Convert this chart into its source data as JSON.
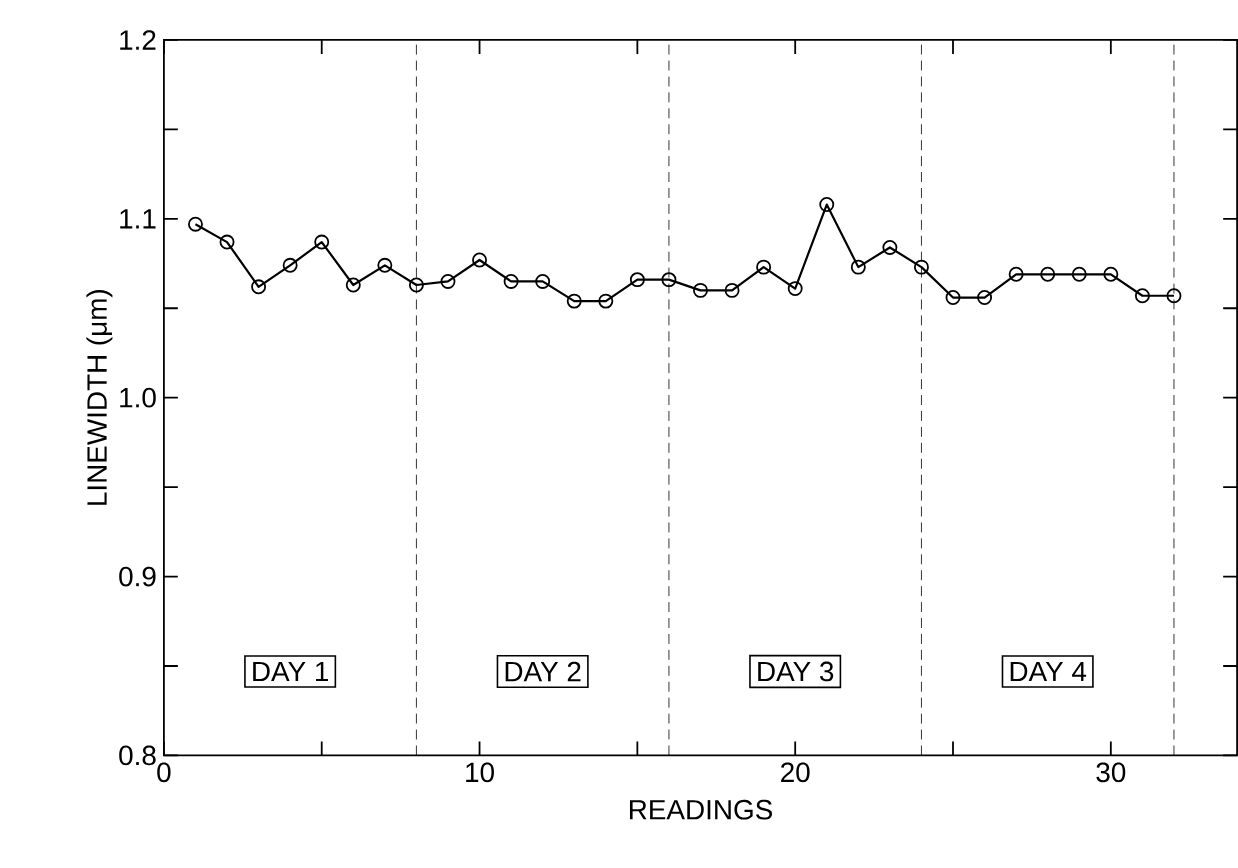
{
  "chart_data": {
    "type": "line",
    "xlabel": "READINGS",
    "ylabel": "LINEWIDTH (μm)",
    "x": [
      1,
      2,
      3,
      4,
      5,
      6,
      7,
      8,
      9,
      10,
      11,
      12,
      13,
      14,
      15,
      16,
      17,
      18,
      19,
      20,
      21,
      22,
      23,
      24,
      25,
      26,
      27,
      28,
      29,
      30,
      31,
      32
    ],
    "series": [
      {
        "color": "#000000",
        "values": [
          1.097,
          1.087,
          1.062,
          1.074,
          1.087,
          1.063,
          1.074,
          1.063,
          1.065,
          1.077,
          1.065,
          1.065,
          1.054,
          1.054,
          1.066,
          1.066,
          1.06,
          1.06,
          1.073,
          1.061,
          1.108,
          1.073,
          1.084,
          1.073,
          1.056,
          1.056,
          1.069,
          1.069,
          1.069,
          1.069,
          1.057,
          1.057
        ]
      }
    ],
    "marker": "circle",
    "line_style": "solid",
    "xlim": [
      0,
      34
    ],
    "xticks": [
      0,
      {
        "value": 5,
        "label": null
      },
      10,
      {
        "value": 15,
        "label": null
      },
      20,
      {
        "value": 25,
        "label": null
      },
      30
    ],
    "ylim": [
      0.8,
      1.2
    ],
    "yticks": [
      {
        "value": 0.8,
        "label": "0.8"
      },
      {
        "value": 0.85,
        "label": null
      },
      {
        "value": 0.9,
        "label": "0.9"
      },
      {
        "value": 0.95,
        "label": null
      },
      {
        "value": 1.0,
        "label": "1.0"
      },
      {
        "value": 1.05,
        "label": null
      },
      {
        "value": 1.1,
        "label": "1.1"
      },
      {
        "value": 1.15,
        "label": null
      },
      {
        "value": 1.2,
        "label": "1.2"
      }
    ],
    "ref_lines": [
      {
        "axis": "x",
        "value": 8,
        "line_style": "dashed"
      },
      {
        "axis": "x",
        "value": 16,
        "line_style": "dashed"
      },
      {
        "axis": "x",
        "value": 24,
        "line_style": "dashed"
      },
      {
        "axis": "x",
        "value": 32,
        "line_style": "dashed"
      }
    ],
    "annotations": [
      "DAY 1",
      "DAY 2",
      "DAY 3",
      "DAY 4"
    ]
  }
}
